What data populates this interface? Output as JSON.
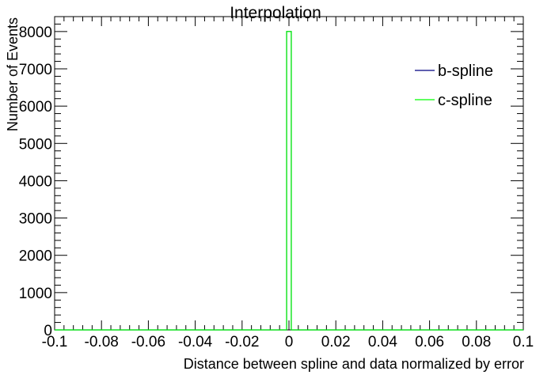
{
  "chart_data": {
    "type": "histogram",
    "title": "Interpolation",
    "xlabel": "Distance between spline and data normalized by error",
    "ylabel": "Number of Events",
    "xlim": [
      -0.1,
      0.1
    ],
    "ylim": [
      0,
      8400
    ],
    "x_ticks": [
      -0.1,
      -0.08,
      -0.06,
      -0.04,
      -0.02,
      0,
      0.02,
      0.04,
      0.06,
      0.08,
      0.1
    ],
    "x_tick_labels": [
      "-0.1",
      "-0.08",
      "-0.06",
      "-0.04",
      "-0.02",
      "0",
      "0.02",
      "0.04",
      "0.06",
      "0.08",
      "0.1"
    ],
    "y_ticks": [
      0,
      1000,
      2000,
      3000,
      4000,
      5000,
      6000,
      7000,
      8000
    ],
    "y_tick_labels": [
      "0",
      "1000",
      "2000",
      "3000",
      "4000",
      "5000",
      "6000",
      "7000",
      "8000"
    ],
    "grid": false,
    "legend_position": "top-right",
    "series": [
      {
        "name": "b-spline",
        "color": "#000080",
        "bins": [
          {
            "x0": -0.001,
            "x1": 0.001,
            "count": 8000
          }
        ]
      },
      {
        "name": "c-spline",
        "color": "#00ff00",
        "bins": [
          {
            "x0": -0.001,
            "x1": 0.001,
            "count": 8000
          }
        ]
      }
    ]
  }
}
